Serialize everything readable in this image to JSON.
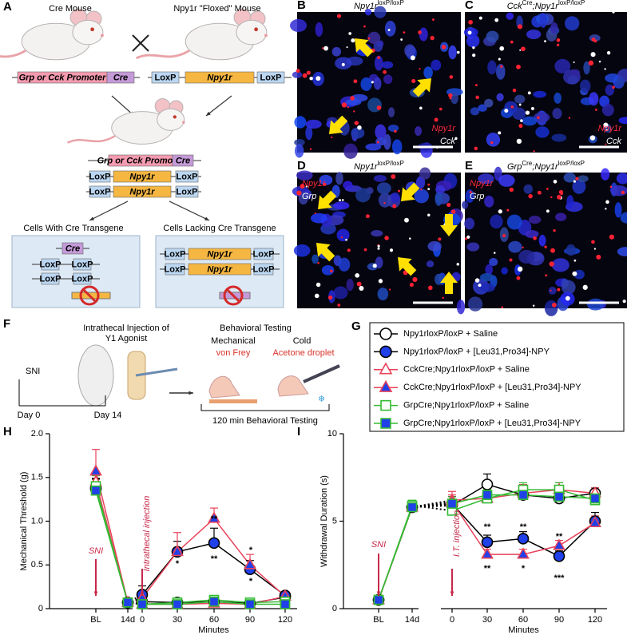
{
  "panels": {
    "a": {
      "label": "A",
      "cre_mouse": "Cre Mouse",
      "floxed_mouse": "Npy1r \"Floxed\" Mouse",
      "promoter": "Grp or Cck Promoter",
      "cre": "Cre",
      "loxp": "LoxP",
      "npy1r": "Npy1r",
      "with_cre": "Cells With Cre Transgene",
      "lacking_cre": "Cells Lacking Cre Transgene"
    },
    "b": {
      "label": "B",
      "title": [
        {
          "t": "Npy1r"
        },
        {
          "t": "loxP/loxP",
          "sup": true
        }
      ],
      "stain1": "Npy1r",
      "stain2": "Cck"
    },
    "c": {
      "label": "C",
      "title": [
        {
          "t": "Cck"
        },
        {
          "t": "Cre",
          "sup": true
        },
        {
          "t": ";Npy1r"
        },
        {
          "t": "loxP/loxP",
          "sup": true
        }
      ],
      "stain1": "Npy1r",
      "stain2": "Cck"
    },
    "d": {
      "label": "D",
      "title": [
        {
          "t": "Npy1r"
        },
        {
          "t": "loxP/loxP",
          "sup": true
        }
      ],
      "stain1": "Npy1r",
      "stain2": "Grp"
    },
    "e": {
      "label": "E",
      "title": [
        {
          "t": "Grp"
        },
        {
          "t": "Cre",
          "sup": true
        },
        {
          "t": ";Npy1r"
        },
        {
          "t": "loxP/loxP",
          "sup": true
        }
      ],
      "stain1": "Npy1r",
      "stain2": "Grp"
    },
    "f": {
      "label": "F",
      "injection": [
        "Intrathecal Injection of",
        "Y1 Agonist"
      ],
      "testing": "Behavioral Testing",
      "mechanical": "Mechanical",
      "cold": "Cold",
      "von_frey": "von Frey",
      "acetone": "Acetone droplet",
      "sni": "SNI",
      "day0": "Day 0",
      "day14": "Day 14",
      "duration": "120 min Behavioral Testing"
    },
    "g": {
      "label": "G"
    }
  },
  "chart_data": [
    {
      "type": "line",
      "panel_label": "H",
      "ylabel": "Mechanical Threshold (g)",
      "xlabel": "Minutes",
      "categories": [
        "BL",
        "14d",
        "0",
        "30",
        "60",
        "90",
        "120"
      ],
      "ylim": [
        0,
        2.0
      ],
      "yticks": [
        0,
        0.5,
        {
          "value": 1.0,
          "label": "1.0"
        },
        1.5,
        {
          "value": 2.0,
          "label": "2.0"
        }
      ],
      "series": [
        {
          "name": "Npy1rloxP/loxP + Saline",
          "color": "#000000",
          "fill": "#ffffff",
          "marker": "circle",
          "values": [
            1.38,
            0.07,
            0.08,
            0.07,
            0.08,
            0.06,
            0.13
          ],
          "errors": [
            0.1,
            0.01,
            0.03,
            0.02,
            0.03,
            0.02,
            0.03
          ]
        },
        {
          "name": "Npy1rloxP/loxP + [Leu31,Pro34]-NPY",
          "color": "#000000",
          "fill": "#2040e8",
          "marker": "circle",
          "values": [
            1.37,
            0.07,
            0.16,
            0.65,
            0.75,
            0.45,
            0.15
          ],
          "errors": [
            0.12,
            0.01,
            0.1,
            0.12,
            0.17,
            0.1,
            0.03
          ]
        },
        {
          "name": "CckCre;Npy1rloxP/loxP + Saline",
          "color": "#e8425a",
          "fill": "#ffffff",
          "marker": "triangle",
          "values": [
            1.45,
            0.07,
            0.05,
            0.05,
            0.06,
            0.05,
            0.14
          ],
          "errors": [
            0.1,
            0.01,
            0.02,
            0.02,
            0.03,
            0.02,
            0.03
          ]
        },
        {
          "name": "CckCre;Npy1rloxP/loxP + [Leu31,Pro34]-NPY",
          "color": "#e8425a",
          "fill": "#2040e8",
          "marker": "triangle",
          "values": [
            1.57,
            0.07,
            0.12,
            0.65,
            1.03,
            0.5,
            0.14
          ],
          "errors": [
            0.25,
            0.01,
            0.06,
            0.22,
            0.12,
            0.12,
            0.03
          ]
        },
        {
          "name": "GrpCre;Npy1rloxP/loxP + Saline",
          "color": "#33bb33",
          "fill": "#ffffff",
          "marker": "square",
          "values": [
            1.4,
            0.07,
            0.05,
            0.07,
            0.1,
            0.07,
            0.08
          ],
          "errors": [
            0.12,
            0.01,
            0.02,
            0.02,
            0.03,
            0.02,
            0.02
          ]
        },
        {
          "name": "GrpCre;Npy1rloxP/loxP + [Leu31,Pro34]-NPY",
          "color": "#33bb33",
          "fill": "#2040e8",
          "marker": "square",
          "values": [
            1.35,
            0.07,
            0.05,
            0.05,
            0.08,
            0.05,
            0.05
          ],
          "errors": [
            0.1,
            0.01,
            0.02,
            0.02,
            0.03,
            0.02,
            0.02
          ]
        }
      ],
      "annotations": [
        {
          "text": "SNI",
          "color": "#c8284a"
        },
        {
          "text": "Intrathecal injection",
          "color": "#c8284a"
        },
        {
          "text": "*",
          "color": "#000000"
        },
        {
          "text": "**",
          "color": "#000000"
        },
        {
          "text": "**",
          "color": "#000000"
        },
        {
          "text": "*",
          "color": "#000000"
        },
        {
          "text": "*",
          "color": "#000000"
        }
      ]
    },
    {
      "type": "line",
      "panel_label": "I",
      "ylabel": "Withdrawal Duration (s)",
      "xlabel": "Minutes",
      "categories": [
        "BL",
        "14d",
        "0",
        "30",
        "60",
        "90",
        "120"
      ],
      "ylim": [
        0,
        10
      ],
      "yticks": [
        0,
        5,
        10
      ],
      "series": [
        {
          "color": "#000000",
          "fill": "#ffffff",
          "marker": "circle",
          "values": [
            0.5,
            5.8,
            5.9,
            7.1,
            6.5,
            6.3,
            6.6
          ],
          "errors": [
            0.1,
            0.3,
            0.5,
            0.6,
            0.4,
            0.3,
            0.3
          ]
        },
        {
          "color": "#000000",
          "fill": "#2040e8",
          "marker": "circle",
          "values": [
            0.5,
            5.8,
            6.0,
            3.8,
            4.0,
            3.0,
            5.0
          ],
          "errors": [
            0.1,
            0.3,
            0.4,
            0.4,
            0.4,
            0.3,
            0.5
          ]
        },
        {
          "color": "#e8425a",
          "fill": "#ffffff",
          "marker": "triangle",
          "values": [
            0.5,
            5.8,
            6.2,
            6.3,
            6.6,
            6.8,
            6.6
          ],
          "errors": [
            0.1,
            0.3,
            0.5,
            0.5,
            0.5,
            0.4,
            0.3
          ]
        },
        {
          "color": "#e8425a",
          "fill": "#2040e8",
          "marker": "triangle",
          "values": [
            0.5,
            5.8,
            6.1,
            3.1,
            3.1,
            3.6,
            4.9
          ],
          "errors": [
            0.1,
            0.3,
            0.4,
            0.3,
            0.3,
            0.3,
            0.4
          ]
        },
        {
          "color": "#33bb33",
          "fill": "#ffffff",
          "marker": "square",
          "values": [
            0.5,
            5.9,
            5.6,
            6.3,
            6.8,
            6.8,
            6.2
          ],
          "errors": [
            0.1,
            0.3,
            0.5,
            0.5,
            0.4,
            0.4,
            0.3
          ]
        },
        {
          "color": "#33bb33",
          "fill": "#2040e8",
          "marker": "square",
          "values": [
            0.5,
            5.8,
            6.0,
            6.5,
            6.5,
            6.4,
            6.3
          ],
          "errors": [
            0.1,
            0.3,
            0.4,
            0.4,
            0.4,
            0.4,
            0.3
          ]
        }
      ],
      "annotations": [
        {
          "text": "SNI",
          "color": "#c8284a"
        },
        {
          "text": "I.T. injection",
          "color": "#c8284a"
        },
        {
          "text": "**",
          "color": "#000000"
        },
        {
          "text": "**",
          "color": "#000000"
        },
        {
          "text": "**",
          "color": "#000000"
        },
        {
          "text": "*",
          "color": "#000000"
        },
        {
          "text": "**",
          "color": "#000000"
        },
        {
          "text": "***",
          "color": "#000000"
        }
      ]
    }
  ]
}
